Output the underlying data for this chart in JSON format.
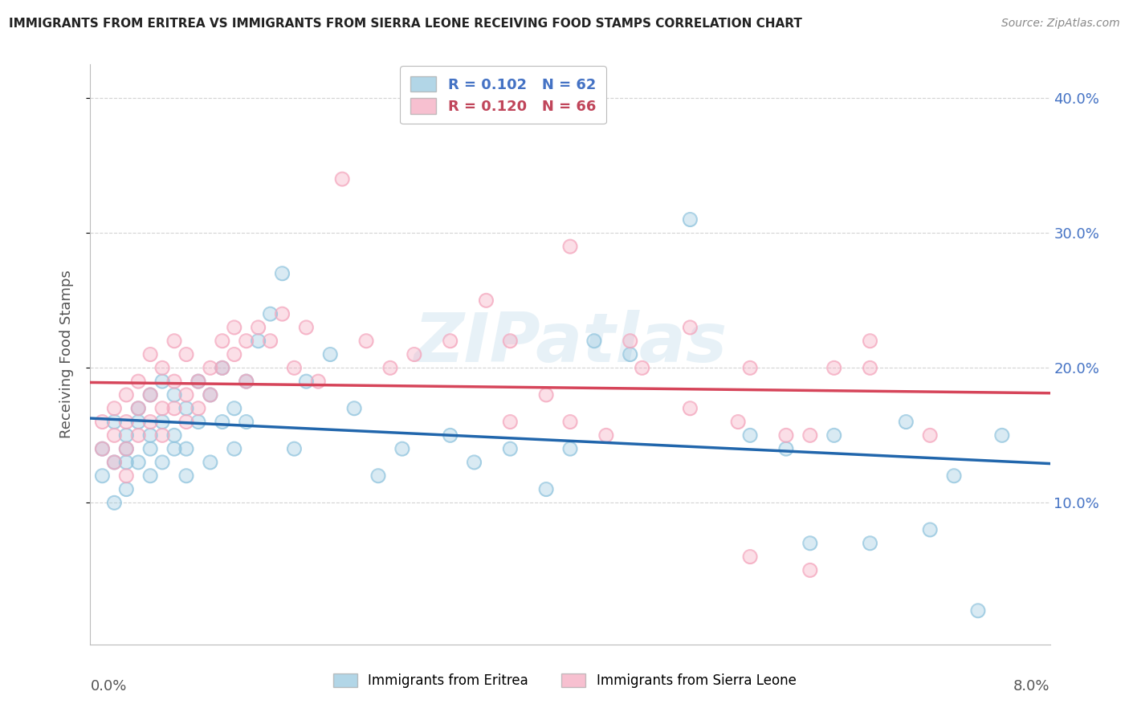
{
  "title": "IMMIGRANTS FROM ERITREA VS IMMIGRANTS FROM SIERRA LEONE RECEIVING FOOD STAMPS CORRELATION CHART",
  "source": "Source: ZipAtlas.com",
  "ylabel": "Receiving Food Stamps",
  "legend_eritrea": "Immigrants from Eritrea",
  "legend_sierra": "Immigrants from Sierra Leone",
  "R_eritrea": 0.102,
  "N_eritrea": 62,
  "R_sierra": 0.12,
  "N_sierra": 66,
  "color_eritrea": "#92c5de",
  "color_sierra": "#f4a6bd",
  "line_color_eritrea": "#2166ac",
  "line_color_sierra": "#d6455a",
  "xlim": [
    0.0,
    0.08
  ],
  "ylim": [
    -0.005,
    0.425
  ],
  "y_ticks_right": [
    0.1,
    0.2,
    0.3,
    0.4
  ],
  "y_tick_labels_right": [
    "10.0%",
    "20.0%",
    "30.0%",
    "40.0%"
  ],
  "watermark": "ZIPatlas",
  "background_color": "#ffffff",
  "grid_color": "#c8c8c8",
  "eritrea_x": [
    0.001,
    0.001,
    0.002,
    0.002,
    0.002,
    0.003,
    0.003,
    0.003,
    0.003,
    0.004,
    0.004,
    0.004,
    0.005,
    0.005,
    0.005,
    0.005,
    0.006,
    0.006,
    0.006,
    0.007,
    0.007,
    0.007,
    0.008,
    0.008,
    0.008,
    0.009,
    0.009,
    0.01,
    0.01,
    0.011,
    0.011,
    0.012,
    0.012,
    0.013,
    0.013,
    0.014,
    0.015,
    0.016,
    0.017,
    0.018,
    0.02,
    0.022,
    0.024,
    0.026,
    0.03,
    0.032,
    0.035,
    0.038,
    0.04,
    0.042,
    0.045,
    0.05,
    0.055,
    0.058,
    0.06,
    0.062,
    0.065,
    0.068,
    0.07,
    0.072,
    0.074,
    0.076
  ],
  "eritrea_y": [
    0.14,
    0.12,
    0.16,
    0.13,
    0.1,
    0.15,
    0.13,
    0.11,
    0.14,
    0.17,
    0.13,
    0.16,
    0.15,
    0.12,
    0.18,
    0.14,
    0.16,
    0.13,
    0.19,
    0.15,
    0.14,
    0.18,
    0.17,
    0.14,
    0.12,
    0.19,
    0.16,
    0.18,
    0.13,
    0.2,
    0.16,
    0.17,
    0.14,
    0.19,
    0.16,
    0.22,
    0.24,
    0.27,
    0.14,
    0.19,
    0.21,
    0.17,
    0.12,
    0.14,
    0.15,
    0.13,
    0.14,
    0.11,
    0.14,
    0.22,
    0.21,
    0.31,
    0.15,
    0.14,
    0.07,
    0.15,
    0.07,
    0.16,
    0.08,
    0.12,
    0.02,
    0.15
  ],
  "sierra_x": [
    0.001,
    0.001,
    0.002,
    0.002,
    0.002,
    0.003,
    0.003,
    0.003,
    0.003,
    0.004,
    0.004,
    0.004,
    0.005,
    0.005,
    0.005,
    0.006,
    0.006,
    0.006,
    0.007,
    0.007,
    0.007,
    0.008,
    0.008,
    0.008,
    0.009,
    0.009,
    0.01,
    0.01,
    0.011,
    0.011,
    0.012,
    0.012,
    0.013,
    0.013,
    0.014,
    0.015,
    0.016,
    0.017,
    0.018,
    0.019,
    0.021,
    0.023,
    0.025,
    0.027,
    0.03,
    0.033,
    0.035,
    0.038,
    0.04,
    0.043,
    0.046,
    0.05,
    0.054,
    0.058,
    0.062,
    0.035,
    0.04,
    0.045,
    0.05,
    0.055,
    0.06,
    0.065,
    0.07,
    0.055,
    0.06,
    0.065
  ],
  "sierra_y": [
    0.16,
    0.14,
    0.17,
    0.15,
    0.13,
    0.18,
    0.16,
    0.14,
    0.12,
    0.19,
    0.17,
    0.15,
    0.18,
    0.16,
    0.21,
    0.17,
    0.15,
    0.2,
    0.19,
    0.17,
    0.22,
    0.18,
    0.16,
    0.21,
    0.19,
    0.17,
    0.2,
    0.18,
    0.22,
    0.2,
    0.21,
    0.23,
    0.22,
    0.19,
    0.23,
    0.22,
    0.24,
    0.2,
    0.23,
    0.19,
    0.34,
    0.22,
    0.2,
    0.21,
    0.22,
    0.25,
    0.16,
    0.18,
    0.29,
    0.15,
    0.2,
    0.17,
    0.16,
    0.15,
    0.2,
    0.22,
    0.16,
    0.22,
    0.23,
    0.2,
    0.15,
    0.2,
    0.15,
    0.06,
    0.05,
    0.22
  ]
}
